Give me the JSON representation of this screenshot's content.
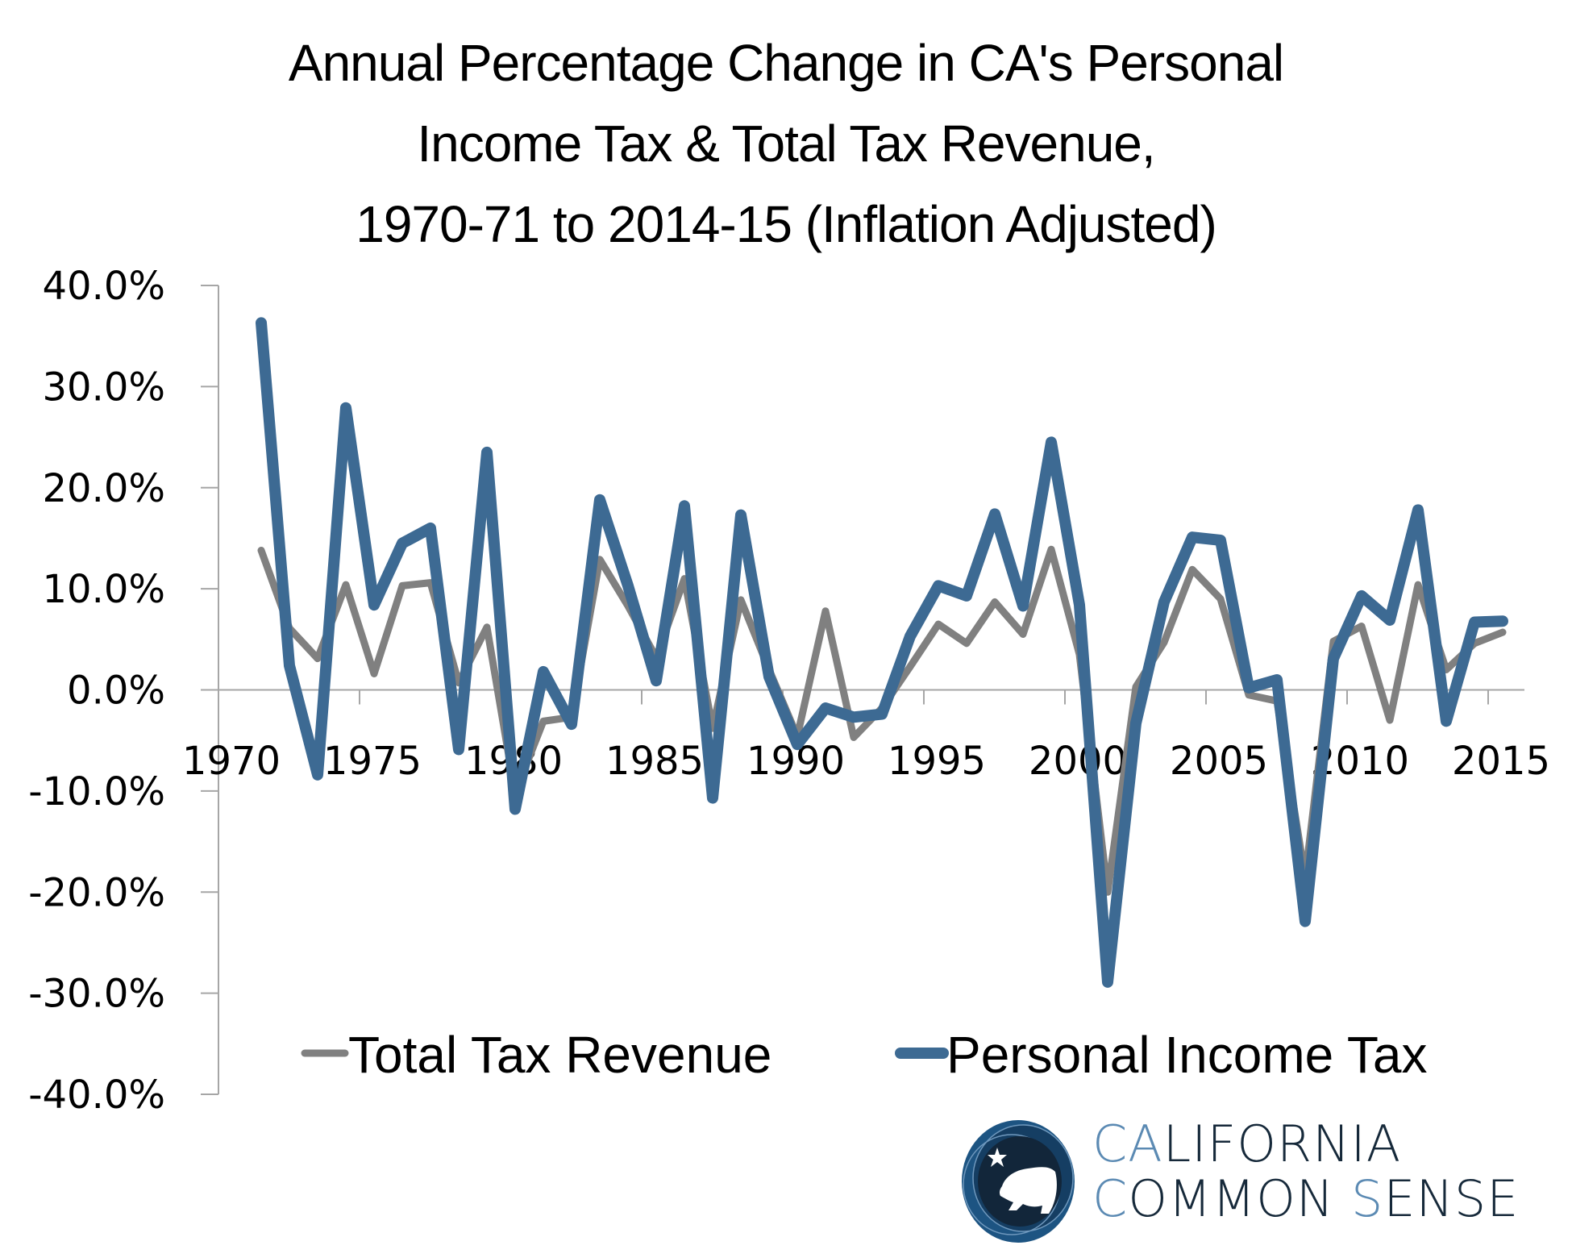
{
  "chart_data": {
    "type": "line",
    "title": [
      "Annual Percentage Change in CA's Personal",
      "Income Tax & Total Tax Revenue,",
      "1970-71 to 2014-15 (Inflation Adjusted)"
    ],
    "xlabel": "",
    "ylabel": "",
    "ylim": [
      -40,
      40
    ],
    "xlim": [
      1970,
      2016
    ],
    "yticks": [
      40,
      30,
      20,
      10,
      0,
      -10,
      -20,
      -30,
      -40
    ],
    "ytick_labels": [
      "40.0%",
      "30.0%",
      "20.0%",
      "10.0%",
      "0.0%",
      "-10.0%",
      "-20.0%",
      "-30.0%",
      "-40.0%"
    ],
    "xticks": [
      1970,
      1975,
      1980,
      1985,
      1990,
      1995,
      2000,
      2005,
      2010,
      2015
    ],
    "xtick_labels": [
      "1970",
      "1975",
      "1980",
      "1985",
      "1990",
      "1995",
      "2000",
      "2005",
      "2010",
      "2015"
    ],
    "grid": false,
    "legend_position": "bottom",
    "x": [
      1971,
      1972,
      1973,
      1974,
      1975,
      1976,
      1977,
      1978,
      1979,
      1980,
      1981,
      1982,
      1983,
      1984,
      1985,
      1986,
      1987,
      1988,
      1989,
      1990,
      1991,
      1992,
      1993,
      1994,
      1995,
      1996,
      1997,
      1998,
      1999,
      2000,
      2001,
      2002,
      2003,
      2004,
      2005,
      2006,
      2007,
      2008,
      2009,
      2010,
      2011,
      2012,
      2013,
      2014,
      2015
    ],
    "series": [
      {
        "name": "Total Tax Revenue",
        "color": "#808080",
        "values": [
          13.8,
          6.1,
          3.1,
          10.4,
          1.6,
          10.3,
          10.6,
          0.7,
          6.2,
          -10.2,
          -3.1,
          -2.7,
          12.9,
          8.3,
          3.2,
          11.0,
          -3.8,
          8.9,
          2.0,
          -4.6,
          7.8,
          -4.7,
          -1.8,
          2.3,
          6.5,
          4.6,
          8.7,
          5.5,
          13.9,
          3.5,
          -20.0,
          0.3,
          4.7,
          11.9,
          9.0,
          -0.5,
          -1.1,
          -18.6,
          4.8,
          6.3,
          -3.0,
          10.4,
          2.0,
          4.6,
          5.7
        ]
      },
      {
        "name": "Personal Income Tax",
        "color": "#3d6a93",
        "values": [
          36.3,
          2.4,
          -8.4,
          27.9,
          8.4,
          14.5,
          16.0,
          -5.9,
          23.5,
          -11.8,
          1.8,
          -3.4,
          18.8,
          10.3,
          0.9,
          18.2,
          -10.7,
          17.3,
          1.3,
          -5.4,
          -1.8,
          -2.7,
          -2.4,
          5.3,
          10.3,
          9.3,
          17.4,
          8.3,
          24.5,
          8.4,
          -28.9,
          -3.3,
          8.7,
          15.1,
          14.8,
          0.2,
          1.0,
          -22.9,
          3.1,
          9.3,
          6.9,
          17.8,
          -3.1,
          6.7,
          6.8
        ]
      }
    ]
  },
  "logo": {
    "icon": "california-bear-star-icon",
    "line1_accent": "CA",
    "line1_rest": "LIFORNIA",
    "line2_accent1": "C",
    "line2_mid": "OMMON ",
    "line2_accent2": "S",
    "line2_rest": "ENSE",
    "accent_color": "#5b8ab3",
    "text_color": "#16293a"
  }
}
